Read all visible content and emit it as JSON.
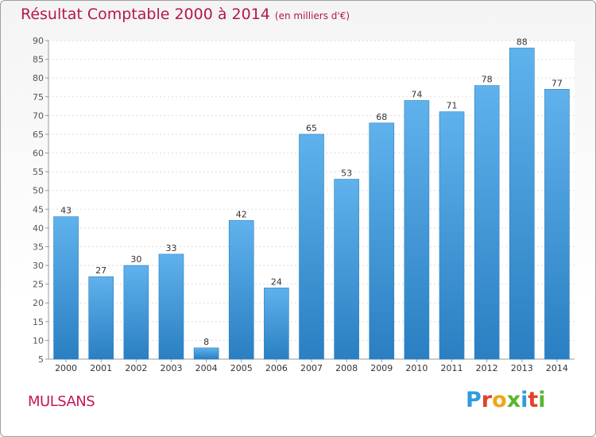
{
  "header": {
    "title": "Résultat Comptable 2000 à 2014",
    "unit": "(en milliers d'€)"
  },
  "footer": {
    "town": "MULSANS",
    "logo_letters": [
      "P",
      "r",
      "o",
      "x",
      "i",
      "t",
      "i"
    ],
    "logo_colors": [
      "#2f9be0",
      "#e2422b",
      "#f0a417",
      "#5ab52c",
      "#2f9be0",
      "#e2422b",
      "#5ab52c"
    ]
  },
  "chart_data": {
    "type": "bar",
    "title": "Résultat Comptable 2000 à 2014",
    "subtitle": "(en milliers d'€)",
    "xlabel": "",
    "ylabel": "",
    "categories": [
      "2000",
      "2001",
      "2002",
      "2003",
      "2004",
      "2005",
      "2006",
      "2007",
      "2008",
      "2009",
      "2010",
      "2011",
      "2012",
      "2013",
      "2014"
    ],
    "values": [
      43,
      27,
      30,
      33,
      8,
      42,
      24,
      65,
      53,
      68,
      74,
      71,
      78,
      88,
      77
    ],
    "ylim": [
      5,
      90
    ],
    "yticks": [
      5,
      10,
      15,
      20,
      25,
      30,
      35,
      40,
      45,
      50,
      55,
      60,
      65,
      70,
      75,
      80,
      85,
      90
    ],
    "grid": true,
    "bar_color": "#3d95d6",
    "bar_color_light": "#5fb2ec",
    "bar_color_dark": "#2a7fc2"
  }
}
